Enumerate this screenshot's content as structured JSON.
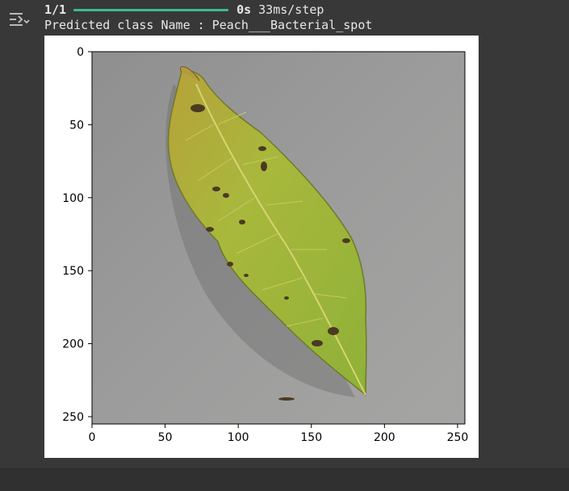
{
  "progress": {
    "step": "1/1",
    "fraction": 1.0,
    "time": "0s",
    "per_step": "33ms/step"
  },
  "prediction": {
    "text": "Predicted class Name : Peach___Bacterial_spot"
  },
  "icons": {
    "output_toggle": "output-toggle-icon"
  },
  "colors": {
    "progress": "#3cbc8d",
    "background": "#383838",
    "figure_bg": "#ffffff"
  },
  "plot": {
    "x_ticks": [
      "0",
      "50",
      "100",
      "150",
      "200",
      "250"
    ],
    "y_ticks": [
      "0",
      "50",
      "100",
      "150",
      "200",
      "250"
    ],
    "xlim": [
      0,
      255
    ],
    "ylim": [
      255,
      0
    ],
    "image_description_subject": "peach leaf with bacterial spots on grey background"
  }
}
